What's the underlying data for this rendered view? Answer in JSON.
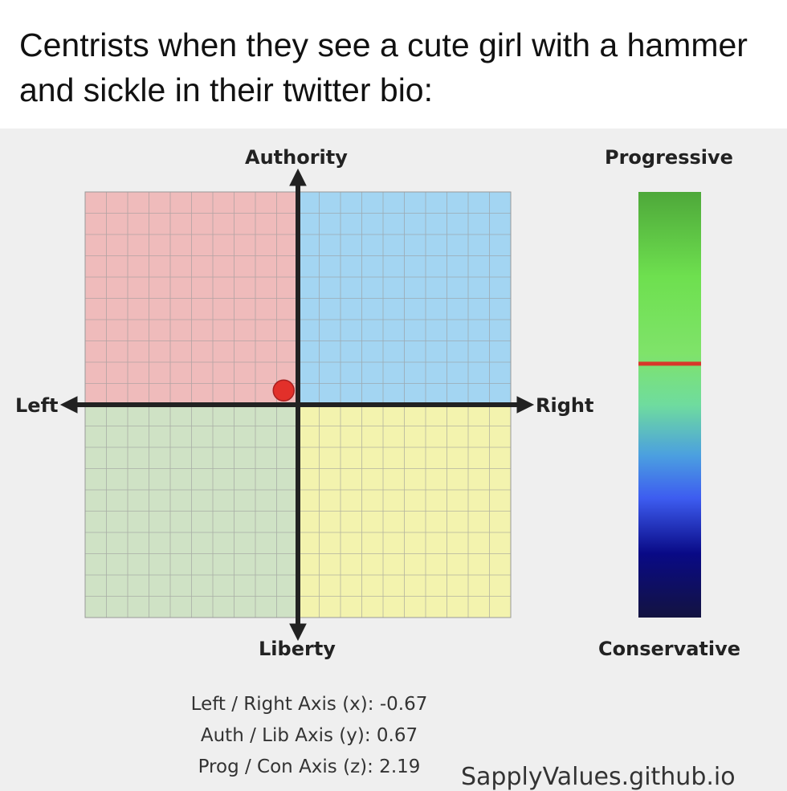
{
  "caption": "Centrists when they see a cute girl with a hammer and sickle in their twitter bio:",
  "labels": {
    "top": "Authority",
    "bottom": "Liberty",
    "left": "Left",
    "right": "Right",
    "bar_top": "Progressive",
    "bar_bottom": "Conservative"
  },
  "results": {
    "x_line": "Left / Right Axis (x): -0.67",
    "y_line": "Auth / Lib Axis (y): 0.67",
    "z_line": "Prog / Con Axis (z): 2.19"
  },
  "score": {
    "x": -0.67,
    "y": 0.67,
    "z": 2.19,
    "range": 10
  },
  "colors": {
    "auth_left": "#efbbbb",
    "auth_right": "#a3d5f2",
    "lib_left": "#cfe2c5",
    "lib_right": "#f3f3ae",
    "dot": "#e2302a",
    "marker": "#d8382a"
  },
  "footer": "SapplyValues.github.io"
}
